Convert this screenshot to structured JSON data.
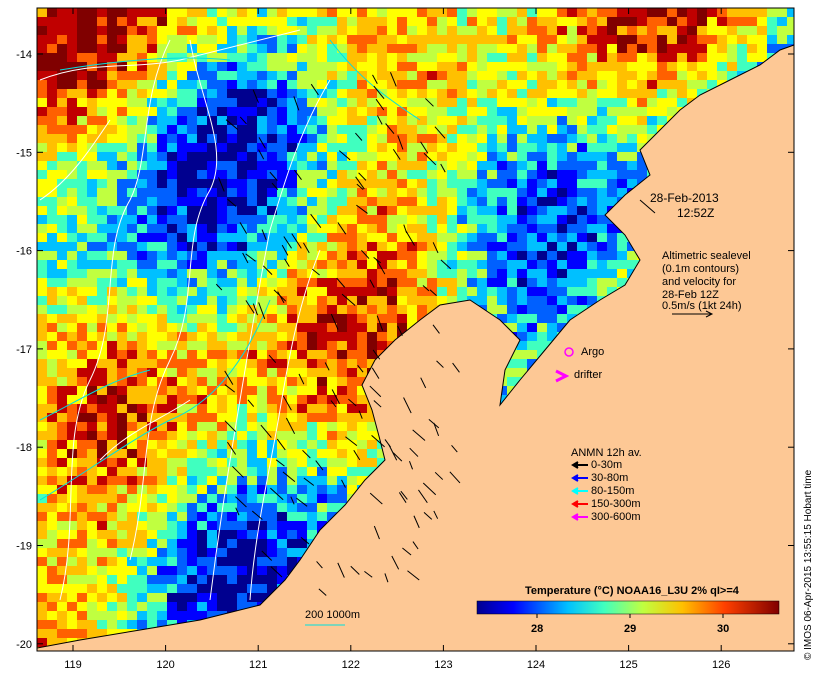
{
  "map": {
    "date_label": "28-Feb-2013",
    "time_label": "12:52Z",
    "altimetry_note": {
      "line1": "Altimetric sealevel",
      "line2": "(0.1m contours)",
      "line3": "and velocity for",
      "line4": "28-Feb 12Z",
      "line5": "0.5m/s (1kt 24h)"
    },
    "argo_label": "Argo",
    "drifter_label": "drifter",
    "mooring_legend": {
      "title": "ANMN 12h av.",
      "items": [
        {
          "label": "0-30m",
          "color": "#000000"
        },
        {
          "label": "30-80m",
          "color": "#0000ff"
        },
        {
          "label": "80-150m",
          "color": "#00ffff"
        },
        {
          "label": "150-300m",
          "color": "#ff0000"
        },
        {
          "label": "300-600m",
          "color": "#ff00ff"
        }
      ]
    },
    "isobath_label": "200  1000m",
    "colorbar": {
      "title": "Temperature (°C) NOAA16_L3U 2% qI>=4",
      "ticks": [
        "28",
        "29",
        "30"
      ]
    },
    "credit": "© IMOS 06-Apr-2015 13:55:15 Hobart time",
    "lon_ticks": [
      "119",
      "120",
      "121",
      "122",
      "123",
      "124",
      "125",
      "126"
    ],
    "lat_ticks": [
      "-14",
      "-15",
      "-16",
      "-17",
      "-18",
      "-19",
      "-20"
    ],
    "colors": {
      "land": "#fdc895",
      "cold": "#00008f",
      "warm": "#800000",
      "contour": "#ffffff",
      "argo": "#ff00ff"
    }
  }
}
